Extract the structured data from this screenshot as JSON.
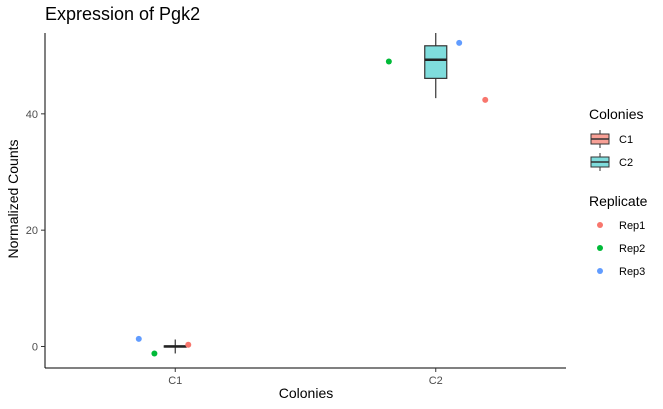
{
  "chart_data": {
    "type": "boxplot",
    "title": "Expression of Pgk2",
    "xlabel": "Colonies",
    "ylabel": "Normalized Counts",
    "categories": [
      "C1",
      "C2"
    ],
    "ylim": [
      -3.7,
      53.9
    ],
    "y_ticks": [
      0,
      20,
      40
    ],
    "grid": false,
    "legend_position": "right",
    "boxes": [
      {
        "category": "C1",
        "min": -1.2,
        "q1": -0.1,
        "median": 0.0,
        "q3": 0.1,
        "max": 1.2,
        "fill": "#F8A096"
      },
      {
        "category": "C2",
        "min": 42.7,
        "q1": 46.1,
        "median": 49.3,
        "q3": 51.7,
        "max": 53.9,
        "fill": "#7FDDDD"
      }
    ],
    "points": [
      {
        "category": "C1",
        "replicate": "Rep1",
        "jitter": 0.05,
        "y": 0.3
      },
      {
        "category": "C1",
        "replicate": "Rep2",
        "jitter": -0.08,
        "y": -1.2
      },
      {
        "category": "C1",
        "replicate": "Rep3",
        "jitter": -0.14,
        "y": 1.3
      },
      {
        "category": "C2",
        "replicate": "Rep1",
        "jitter": 0.19,
        "y": 42.4
      },
      {
        "category": "C2",
        "replicate": "Rep2",
        "jitter": -0.18,
        "y": 49.0
      },
      {
        "category": "C2",
        "replicate": "Rep3",
        "jitter": 0.09,
        "y": 52.2
      }
    ],
    "legends": [
      {
        "title": "Colonies",
        "kind": "box",
        "entries": [
          {
            "label": "C1",
            "color": "#F8A096"
          },
          {
            "label": "C2",
            "color": "#7FDDDD"
          }
        ]
      },
      {
        "title": "Replicate",
        "kind": "point",
        "entries": [
          {
            "label": "Rep1",
            "color": "#F8766D"
          },
          {
            "label": "Rep2",
            "color": "#00BA38"
          },
          {
            "label": "Rep3",
            "color": "#619CFF"
          }
        ]
      }
    ]
  }
}
